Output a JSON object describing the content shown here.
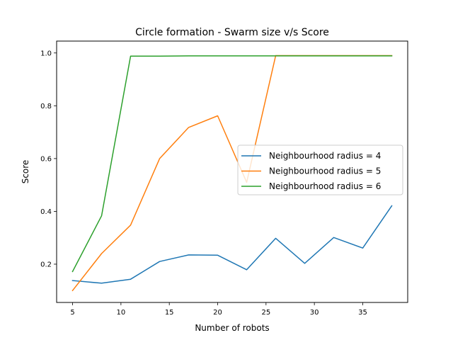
{
  "chart_data": {
    "type": "line",
    "title": "Circle formation - Swarm size v/s Score",
    "xlabel": "Number of robots",
    "ylabel": "Score",
    "xlim": [
      3.35,
      39.65
    ],
    "ylim": [
      0.055,
      1.045
    ],
    "xticks": [
      5,
      10,
      15,
      20,
      25,
      30,
      35
    ],
    "yticks": [
      0.2,
      0.4,
      0.6,
      0.8,
      1.0
    ],
    "ytick_labels": [
      "0.2",
      "0.4",
      "0.6",
      "0.8",
      "1.0"
    ],
    "legend_position": "center-right",
    "grid": false,
    "x": [
      5,
      8,
      11,
      14,
      17,
      20,
      23,
      26,
      29,
      32,
      35,
      38
    ],
    "series": [
      {
        "name": "Neighbourhood radius = 4",
        "color": "#1f77b4",
        "values": [
          0.138,
          0.128,
          0.143,
          0.21,
          0.235,
          0.234,
          0.179,
          0.298,
          0.203,
          0.301,
          0.261,
          0.421
        ]
      },
      {
        "name": "Neighbourhood radius = 5",
        "color": "#ff7f0e",
        "values": [
          0.1,
          0.24,
          0.348,
          0.6,
          0.718,
          0.762,
          0.51,
          0.99,
          0.99,
          0.99,
          0.99,
          0.99
        ]
      },
      {
        "name": "Neighbourhood radius = 6",
        "color": "#2ca02c",
        "values": [
          0.172,
          0.383,
          0.988,
          0.988,
          0.989,
          0.989,
          0.989,
          0.989,
          0.989,
          0.989,
          0.989,
          0.989
        ]
      }
    ]
  }
}
